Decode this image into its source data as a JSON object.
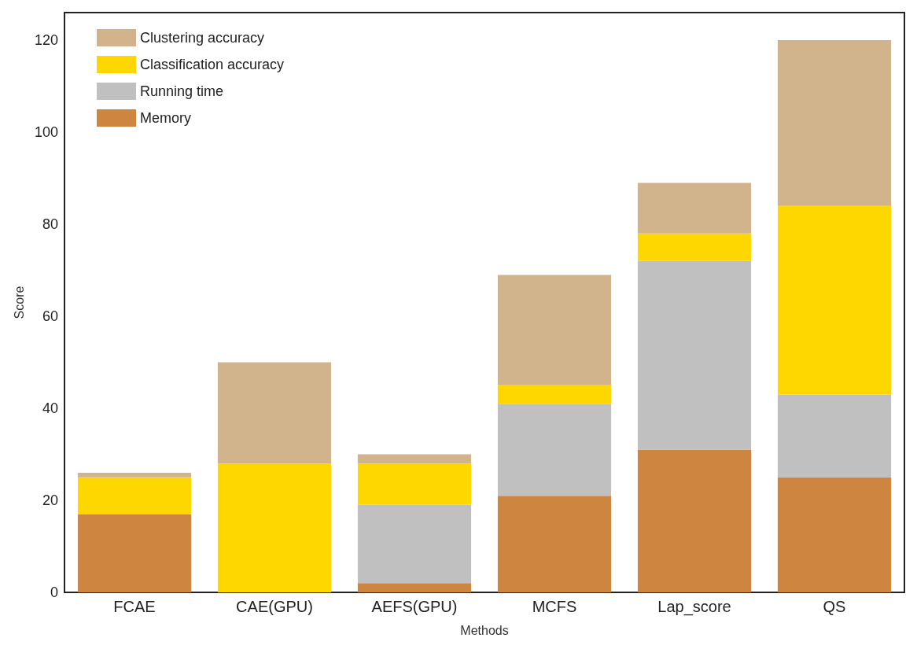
{
  "chart_data": {
    "type": "bar",
    "stacked": true,
    "xlabel": "Methods",
    "ylabel": "Score",
    "categories": [
      "FCAE",
      "CAE(GPU)",
      "AEFS(GPU)",
      "MCFS",
      "Lap_score",
      "QS"
    ],
    "series": [
      {
        "name": "Memory",
        "color": "#cd853f",
        "values": [
          17,
          0,
          2,
          21,
          31,
          25
        ]
      },
      {
        "name": "Running time",
        "color": "#c0c0c0",
        "values": [
          0,
          0,
          17,
          20,
          41,
          18
        ]
      },
      {
        "name": "Classification accuracy",
        "color": "#ffd700",
        "values": [
          8,
          28,
          9,
          4,
          6,
          41
        ]
      },
      {
        "name": "Clustering accuracy",
        "color": "#d2b48c",
        "values": [
          1,
          22,
          2,
          24,
          11,
          36
        ]
      }
    ],
    "ylim": [
      0,
      126
    ],
    "yticks": [
      0,
      20,
      40,
      60,
      80,
      100,
      120
    ],
    "grid": false,
    "legend": "top left"
  }
}
